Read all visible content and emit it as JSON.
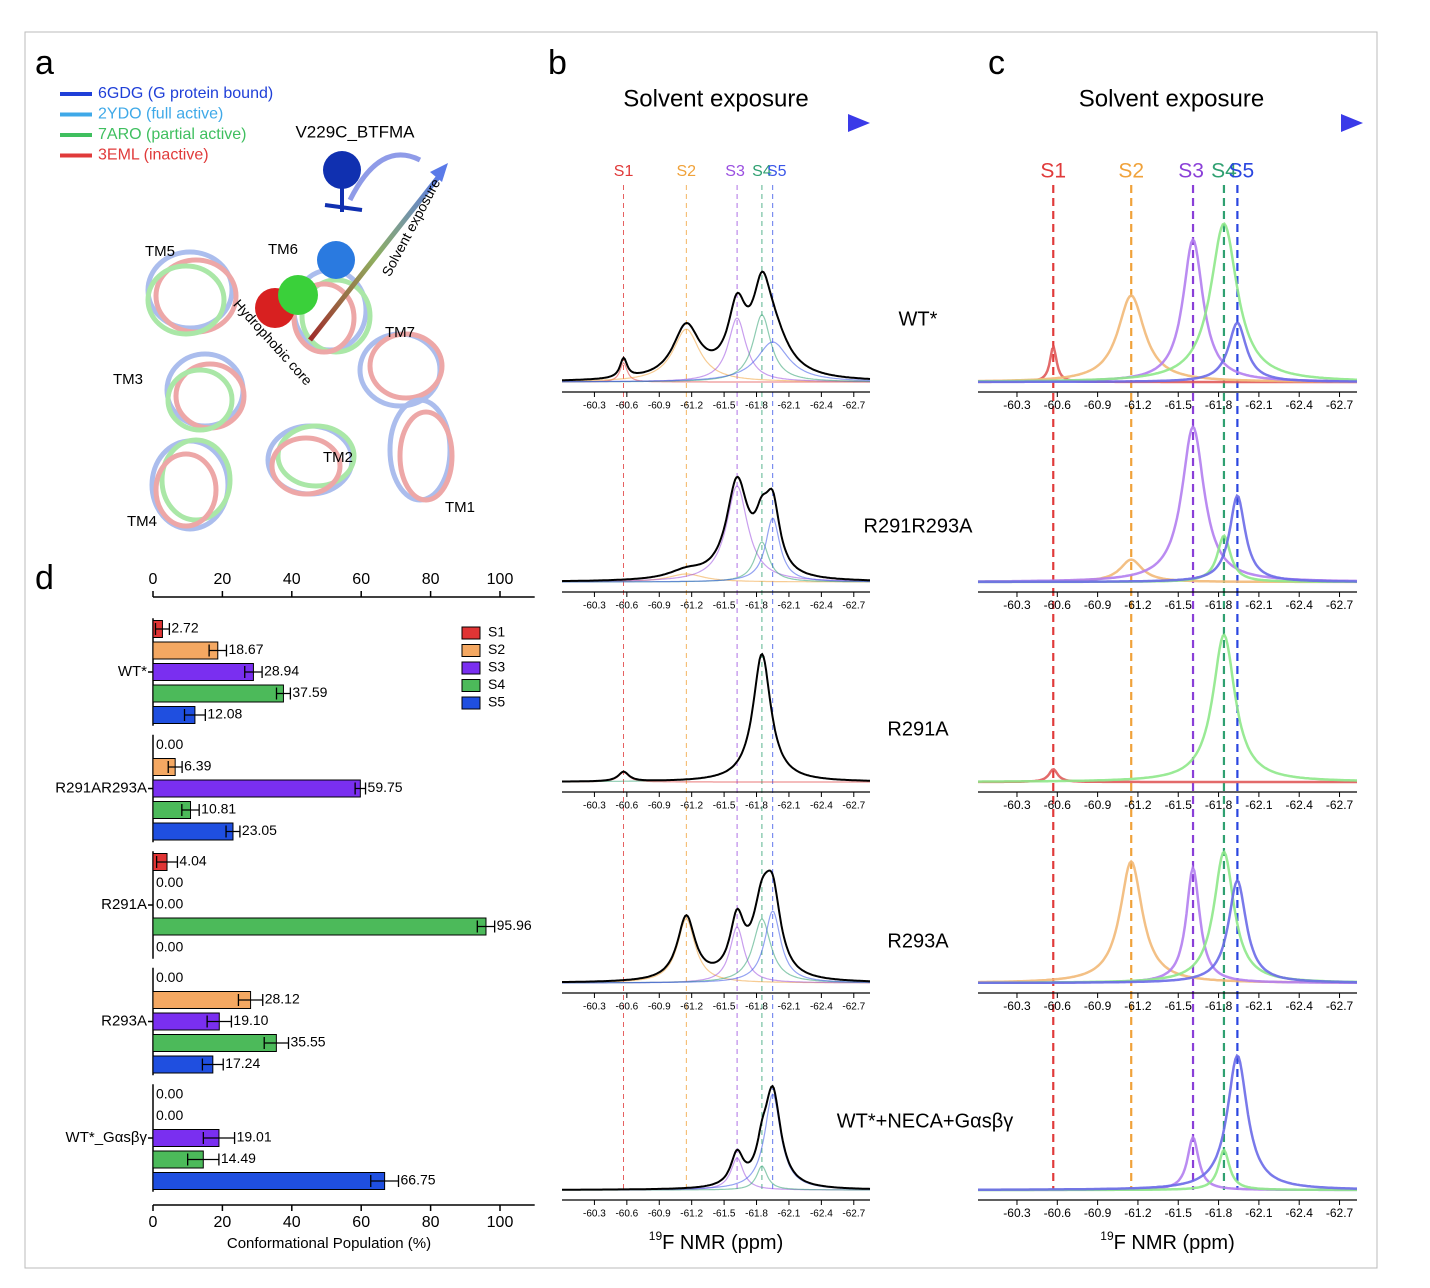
{
  "panel_labels": [
    "a",
    "b",
    "c",
    "d"
  ],
  "panel_a": {
    "legend": [
      {
        "name": "6GDG (G protein bound)",
        "color": "#1f3fd8"
      },
      {
        "name": "2YDO (full active)",
        "color": "#3fa9e8"
      },
      {
        "name": "7ARO (partial active)",
        "color": "#3fbf5f"
      },
      {
        "name": "3EML (inactive)",
        "color": "#e03a3a"
      }
    ],
    "labels": [
      "V229C_BTFMA",
      "Solvent exposure",
      "Hydrophobic core",
      "TM5",
      "TM6",
      "TM7",
      "TM3",
      "TM2",
      "TM4",
      "TM1"
    ]
  },
  "chart_data": [
    {
      "type": "hbar",
      "xlabel": "Conformational Population (%)",
      "xlim": [
        0,
        110
      ],
      "xticks": [
        0,
        20,
        40,
        60,
        80,
        100
      ],
      "groups": [
        "WT*",
        "R291AR293A",
        "R291A",
        "R293A",
        "WT*_Gαsβγ"
      ],
      "series": [
        {
          "name": "S1",
          "color": "#e03434",
          "values": [
            2.72,
            0,
            4.04,
            0,
            0
          ],
          "errors": [
            2,
            0,
            3,
            0,
            0
          ],
          "value_labels": [
            "2.72",
            "0.00",
            "4.04",
            "0.00",
            "0.00"
          ]
        },
        {
          "name": "S2",
          "color": "#f4a862",
          "values": [
            18.67,
            6.39,
            0,
            28.12,
            0
          ],
          "errors": [
            2.5,
            2,
            0,
            3.5,
            0
          ],
          "value_labels": [
            "18.67",
            "6.39",
            "0.00",
            "28.12",
            "0.00"
          ]
        },
        {
          "name": "S3",
          "color": "#7a2ff0",
          "values": [
            28.94,
            59.75,
            0,
            19.1,
            19.01
          ],
          "errors": [
            2.5,
            1.5,
            0,
            3.5,
            4.5
          ],
          "value_labels": [
            "28.94",
            "59.75",
            "0.00",
            "19.10",
            "19.01"
          ]
        },
        {
          "name": "S4",
          "color": "#4cba5a",
          "values": [
            37.59,
            10.81,
            95.96,
            35.55,
            14.49
          ],
          "errors": [
            2,
            2.5,
            2.5,
            3.5,
            4.5
          ],
          "value_labels": [
            "37.59",
            "10.81",
            "95.96",
            "35.55",
            "14.49"
          ]
        },
        {
          "name": "S5",
          "color": "#1f4fe0",
          "values": [
            12.08,
            23.05,
            0,
            17.24,
            66.75
          ],
          "errors": [
            3,
            2,
            0,
            3,
            4
          ],
          "value_labels": [
            "12.08",
            "23.05",
            "0.00",
            "17.24",
            "66.75"
          ]
        }
      ]
    },
    {
      "type": "spectrum",
      "title": "Solvent exposure",
      "xlabel_sup": "19",
      "xlabel": "F NMR (ppm)",
      "xlim": [
        -60.0,
        -62.85
      ],
      "ylim": [
        0,
        1
      ],
      "xticks": [
        -60.3,
        -60.6,
        -60.9,
        -61.2,
        -61.5,
        -61.8,
        -62.1,
        -62.4,
        -62.7
      ],
      "sum_color": "#000000",
      "states": [
        {
          "name": "S1",
          "color": "#e03a3a",
          "position": -60.57
        },
        {
          "name": "S2",
          "color": "#f0a23a",
          "position": -61.15
        },
        {
          "name": "S3",
          "color": "#9a4fe0",
          "position": -61.62
        },
        {
          "name": "S4",
          "color": "#2fa071",
          "position": -61.85
        },
        {
          "name": "S5",
          "color": "#3a56e8",
          "position": -61.95
        }
      ],
      "spectra": [
        {
          "name": "WT*",
          "heights": [
            0.12,
            0.33,
            0.4,
            0.42,
            0.25
          ],
          "widths": [
            0.04,
            0.15,
            0.1,
            0.1,
            0.18
          ]
        },
        {
          "name": "R291R293A",
          "heights": [
            null,
            0.05,
            0.6,
            0.25,
            0.4
          ],
          "widths": [
            null,
            0.2,
            0.12,
            0.08,
            0.08
          ]
        },
        {
          "name": "R291A",
          "heights": [
            0.06,
            null,
            null,
            0.8,
            null
          ],
          "widths": [
            0.06,
            null,
            null,
            0.1,
            null
          ]
        },
        {
          "name": "R293A",
          "heights": [
            null,
            0.4,
            0.35,
            0.4,
            0.45
          ],
          "widths": [
            null,
            0.1,
            0.08,
            0.1,
            0.09
          ]
        },
        {
          "name": "WT*+NECA+Gαsβγ",
          "heights": [
            null,
            null,
            0.2,
            0.15,
            0.6
          ],
          "widths": [
            null,
            null,
            0.07,
            0.06,
            0.09
          ]
        }
      ]
    },
    {
      "type": "spectrum",
      "title": "Solvent exposure",
      "xlabel_sup": "19",
      "xlabel": "F NMR (ppm)",
      "xlim": [
        -60.01,
        -62.83
      ],
      "ylim": [
        0,
        1
      ],
      "xticks": [
        -60.3,
        -60.6,
        -60.9,
        -61.2,
        -61.5,
        -61.8,
        -62.1,
        -62.4,
        -62.7
      ],
      "states": [
        {
          "name": "S1",
          "color": "#e03a3a",
          "position": -60.57
        },
        {
          "name": "S2",
          "color": "#f0a23a",
          "position": -61.15
        },
        {
          "name": "S3",
          "color": "#8a3fd8",
          "position": -61.61
        },
        {
          "name": "S4",
          "color": "#2fa071",
          "position": -61.84
        },
        {
          "name": "S5",
          "color": "#2a46e0",
          "position": -61.94
        }
      ],
      "curve_colors": [
        "#e05a5a",
        "#f2b978",
        "#b27ef0",
        "#8ee88a",
        "#6a6ae8"
      ],
      "spectra": [
        {
          "heights": [
            0.22,
            0.54,
            0.89,
            0.99,
            0.37
          ],
          "widths": [
            0.03,
            0.12,
            0.09,
            0.12,
            0.08
          ]
        },
        {
          "heights": [
            null,
            0.14,
            0.97,
            0.29,
            0.54
          ],
          "widths": [
            null,
            0.1,
            0.1,
            0.06,
            0.07
          ]
        },
        {
          "heights": [
            0.08,
            null,
            null,
            0.92,
            null
          ],
          "widths": [
            0.04,
            null,
            null,
            0.1,
            null
          ]
        },
        {
          "heights": [
            null,
            0.76,
            0.72,
            0.82,
            0.64
          ],
          "widths": [
            null,
            0.1,
            0.06,
            0.09,
            0.08
          ]
        },
        {
          "heights": [
            null,
            null,
            0.33,
            0.25,
            0.84
          ],
          "widths": [
            null,
            null,
            0.05,
            0.05,
            0.09
          ]
        }
      ]
    }
  ]
}
